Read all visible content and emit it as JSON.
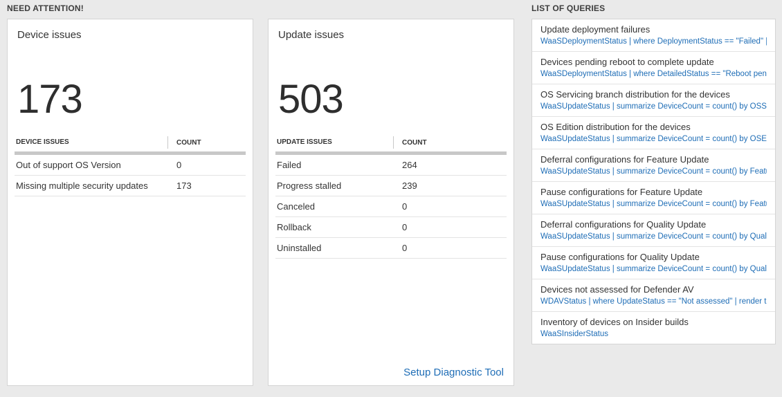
{
  "colors": {
    "page_bg": "#eaeaea",
    "card_bg": "#ffffff",
    "card_border": "#d4d4d4",
    "text_dark": "#333333",
    "accent_blue": "#1e6db6",
    "header_divider": "#c8c8c8",
    "row_divider": "#e3e3e3"
  },
  "need_attention": {
    "header": "NEED ATTENTION!",
    "device_card": {
      "title": "Device issues",
      "count": "173",
      "table": {
        "columns": [
          "DEVICE ISSUES",
          "COUNT"
        ],
        "rows": [
          [
            "Out of support OS Version",
            "0"
          ],
          [
            "Missing multiple security updates",
            "173"
          ]
        ]
      }
    },
    "update_card": {
      "title": "Update issues",
      "count": "503",
      "table": {
        "columns": [
          "UPDATE ISSUES",
          "COUNT"
        ],
        "rows": [
          [
            "Failed",
            "264"
          ],
          [
            "Progress stalled",
            "239"
          ],
          [
            "Canceled",
            "0"
          ],
          [
            "Rollback",
            "0"
          ],
          [
            "Uninstalled",
            "0"
          ]
        ]
      },
      "footer_link": "Setup Diagnostic Tool"
    }
  },
  "queries": {
    "header": "LIST OF QUERIES",
    "items": [
      {
        "title": "Update deployment failures",
        "query": "WaaSDeploymentStatus | where DeploymentStatus == \"Failed\" |..."
      },
      {
        "title": "Devices pending reboot to complete update",
        "query": "WaaSDeploymentStatus | where DetailedStatus == \"Reboot pend..."
      },
      {
        "title": "OS Servicing branch distribution for the devices",
        "query": "WaaSUpdateStatus | summarize DeviceCount = count() by OSSer..."
      },
      {
        "title": "OS Edition distribution for the devices",
        "query": "WaaSUpdateStatus | summarize DeviceCount = count() by OSEdit..."
      },
      {
        "title": "Deferral configurations for Feature Update",
        "query": "WaaSUpdateStatus | summarize DeviceCount = count() by Featur..."
      },
      {
        "title": "Pause configurations for Feature Update",
        "query": "WaaSUpdateStatus | summarize DeviceCount = count() by Featur..."
      },
      {
        "title": "Deferral configurations for Quality Update",
        "query": "WaaSUpdateStatus | summarize DeviceCount = count() by Qualit..."
      },
      {
        "title": "Pause configurations for Quality Update",
        "query": "WaaSUpdateStatus | summarize DeviceCount = count() by Qualit..."
      },
      {
        "title": "Devices not assessed for Defender AV",
        "query": "WDAVStatus | where UpdateStatus == \"Not assessed\" | render ta..."
      },
      {
        "title": "Inventory of devices on Insider builds",
        "query": "WaaSInsiderStatus"
      }
    ]
  }
}
